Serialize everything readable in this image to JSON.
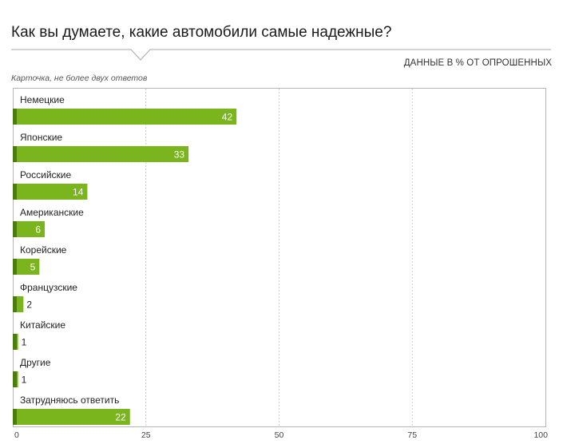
{
  "header": {
    "title": "Как вы думаете, какие автомобили самые надежные?",
    "units_note": "ДАННЫЕ В % ОТ ОПРОШЕННЫХ",
    "card_note": "Карточка, не более двух ответов"
  },
  "colors": {
    "bar": "#7ab51d",
    "bar_dark": "#4b7d0d",
    "grid": "#cccccc",
    "frame": "#b5b5b5",
    "label_inside": "#ffffff",
    "label_outside": "#222222"
  },
  "chart_data": {
    "type": "bar",
    "orientation": "horizontal",
    "categories": [
      "Немецкие",
      "Японские",
      "Российские",
      "Американские",
      "Корейские",
      "Французские",
      "Китайские",
      "Другие",
      "Затрудняюсь ответить"
    ],
    "values": [
      42,
      33,
      14,
      6,
      5,
      2,
      1,
      1,
      22
    ],
    "xlim": [
      0,
      100
    ],
    "xticks": [
      0,
      25,
      50,
      75,
      100
    ],
    "grid": true,
    "grid_style": "dashed-vertical"
  }
}
